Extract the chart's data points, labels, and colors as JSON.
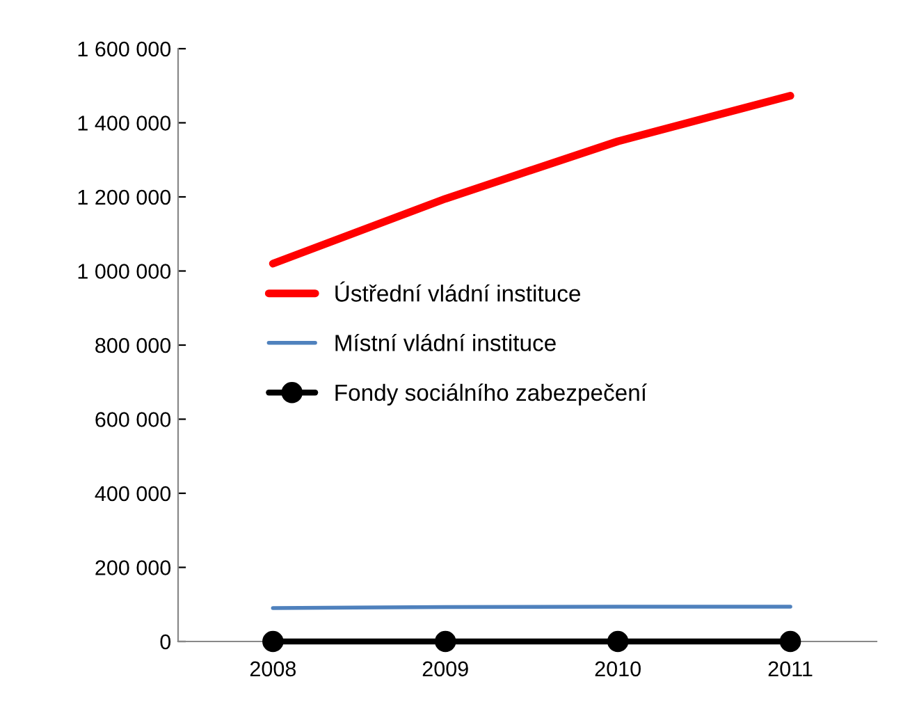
{
  "chart_data": {
    "type": "line",
    "categories": [
      "2008",
      "2009",
      "2010",
      "2011"
    ],
    "series": [
      {
        "name": "Ústřední vládní instituce",
        "color": "#ff0000",
        "values": [
          1020000,
          1195000,
          1350000,
          1473000
        ],
        "marker": "none"
      },
      {
        "name": "Místní vládní instituce",
        "color": "#4f81bd",
        "values": [
          90000,
          93000,
          94000,
          94000
        ],
        "marker": "none"
      },
      {
        "name": "Fondy sociálního zabezpečení",
        "color": "#000000",
        "values": [
          0,
          0,
          0,
          0
        ],
        "marker": "circle"
      }
    ],
    "ylim": [
      0,
      1600000
    ],
    "yticks": [
      {
        "value": 0,
        "label": "0"
      },
      {
        "value": 200000,
        "label": "200 000"
      },
      {
        "value": 400000,
        "label": "400 000"
      },
      {
        "value": 600000,
        "label": "600 000"
      },
      {
        "value": 800000,
        "label": "800 000"
      },
      {
        "value": 1000000,
        "label": "1 000 000"
      },
      {
        "value": 1200000,
        "label": "1 200 000"
      },
      {
        "value": 1400000,
        "label": "1 400 000"
      },
      {
        "value": 1600000,
        "label": "1 600 000"
      }
    ],
    "grid": false,
    "legend": "center left",
    "line_style": "solid"
  }
}
